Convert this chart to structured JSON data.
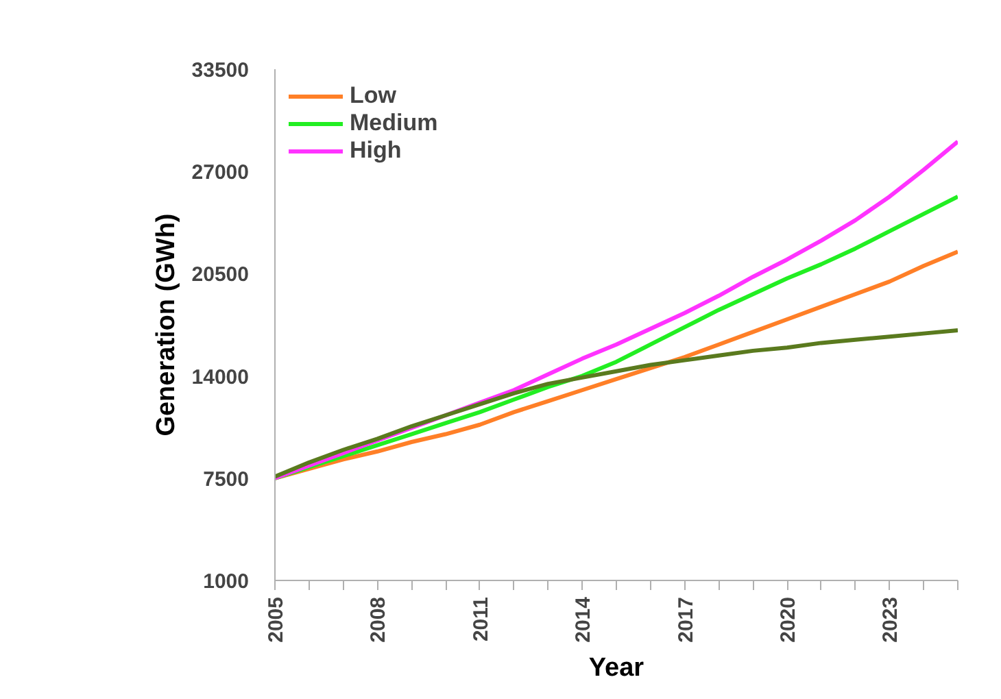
{
  "chart_data": {
    "type": "line",
    "xlabel": "Year",
    "ylabel": "Generation (GWh)",
    "x": [
      2005,
      2006,
      2007,
      2008,
      2009,
      2010,
      2011,
      2012,
      2013,
      2014,
      2015,
      2016,
      2017,
      2018,
      2019,
      2020,
      2021,
      2022,
      2023,
      2024,
      2025
    ],
    "series": [
      {
        "name": "Low",
        "color": "#ff7f27",
        "values": [
          7500,
          8100,
          8700,
          9200,
          9800,
          10300,
          10900,
          11700,
          12400,
          13100,
          13800,
          14500,
          15200,
          16000,
          16800,
          17600,
          18400,
          19200,
          20000,
          21000,
          21900
        ]
      },
      {
        "name": "Medium",
        "color": "#22ee22",
        "values": [
          7500,
          8200,
          8900,
          9600,
          10300,
          11000,
          11700,
          12500,
          13300,
          14000,
          14900,
          16000,
          17100,
          18200,
          19200,
          20200,
          21100,
          22100,
          23200,
          24300,
          25400
        ]
      },
      {
        "name": "High",
        "color": "#ff33ff",
        "values": [
          7500,
          8300,
          9100,
          9900,
          10700,
          11500,
          12300,
          13100,
          14100,
          15100,
          16000,
          17000,
          18000,
          19100,
          20300,
          21400,
          22600,
          23900,
          25400,
          27100,
          28900
        ]
      },
      {
        "color": "#5a7a1e",
        "values": [
          7600,
          8500,
          9300,
          10000,
          10800,
          11500,
          12200,
          12900,
          13500,
          13900,
          14300,
          14700,
          15000,
          15300,
          15600,
          15800,
          16100,
          16300,
          16500,
          16700,
          16900
        ]
      }
    ],
    "xlim": [
      2005,
      2025
    ],
    "xticks": [
      2005,
      {
        "value": 2006,
        "label": null
      },
      {
        "value": 2007,
        "label": null
      },
      2008,
      {
        "value": 2009,
        "label": null
      },
      {
        "value": 2010,
        "label": null
      },
      2011,
      {
        "value": 2012,
        "label": null
      },
      {
        "value": 2013,
        "label": null
      },
      2014,
      {
        "value": 2015,
        "label": null
      },
      {
        "value": 2016,
        "label": null
      },
      2017,
      {
        "value": 2018,
        "label": null
      },
      {
        "value": 2019,
        "label": null
      },
      2020,
      {
        "value": 2021,
        "label": null
      },
      {
        "value": 2022,
        "label": null
      },
      2023,
      {
        "value": 2024,
        "label": null
      },
      {
        "value": 2025,
        "label": null
      }
    ],
    "ylim": [
      1000,
      33500
    ],
    "yticks": [
      1000,
      7500,
      14000,
      20500,
      27000,
      33500
    ],
    "grid": false,
    "legend": "top left",
    "marker": "none",
    "line_style": "solid"
  }
}
